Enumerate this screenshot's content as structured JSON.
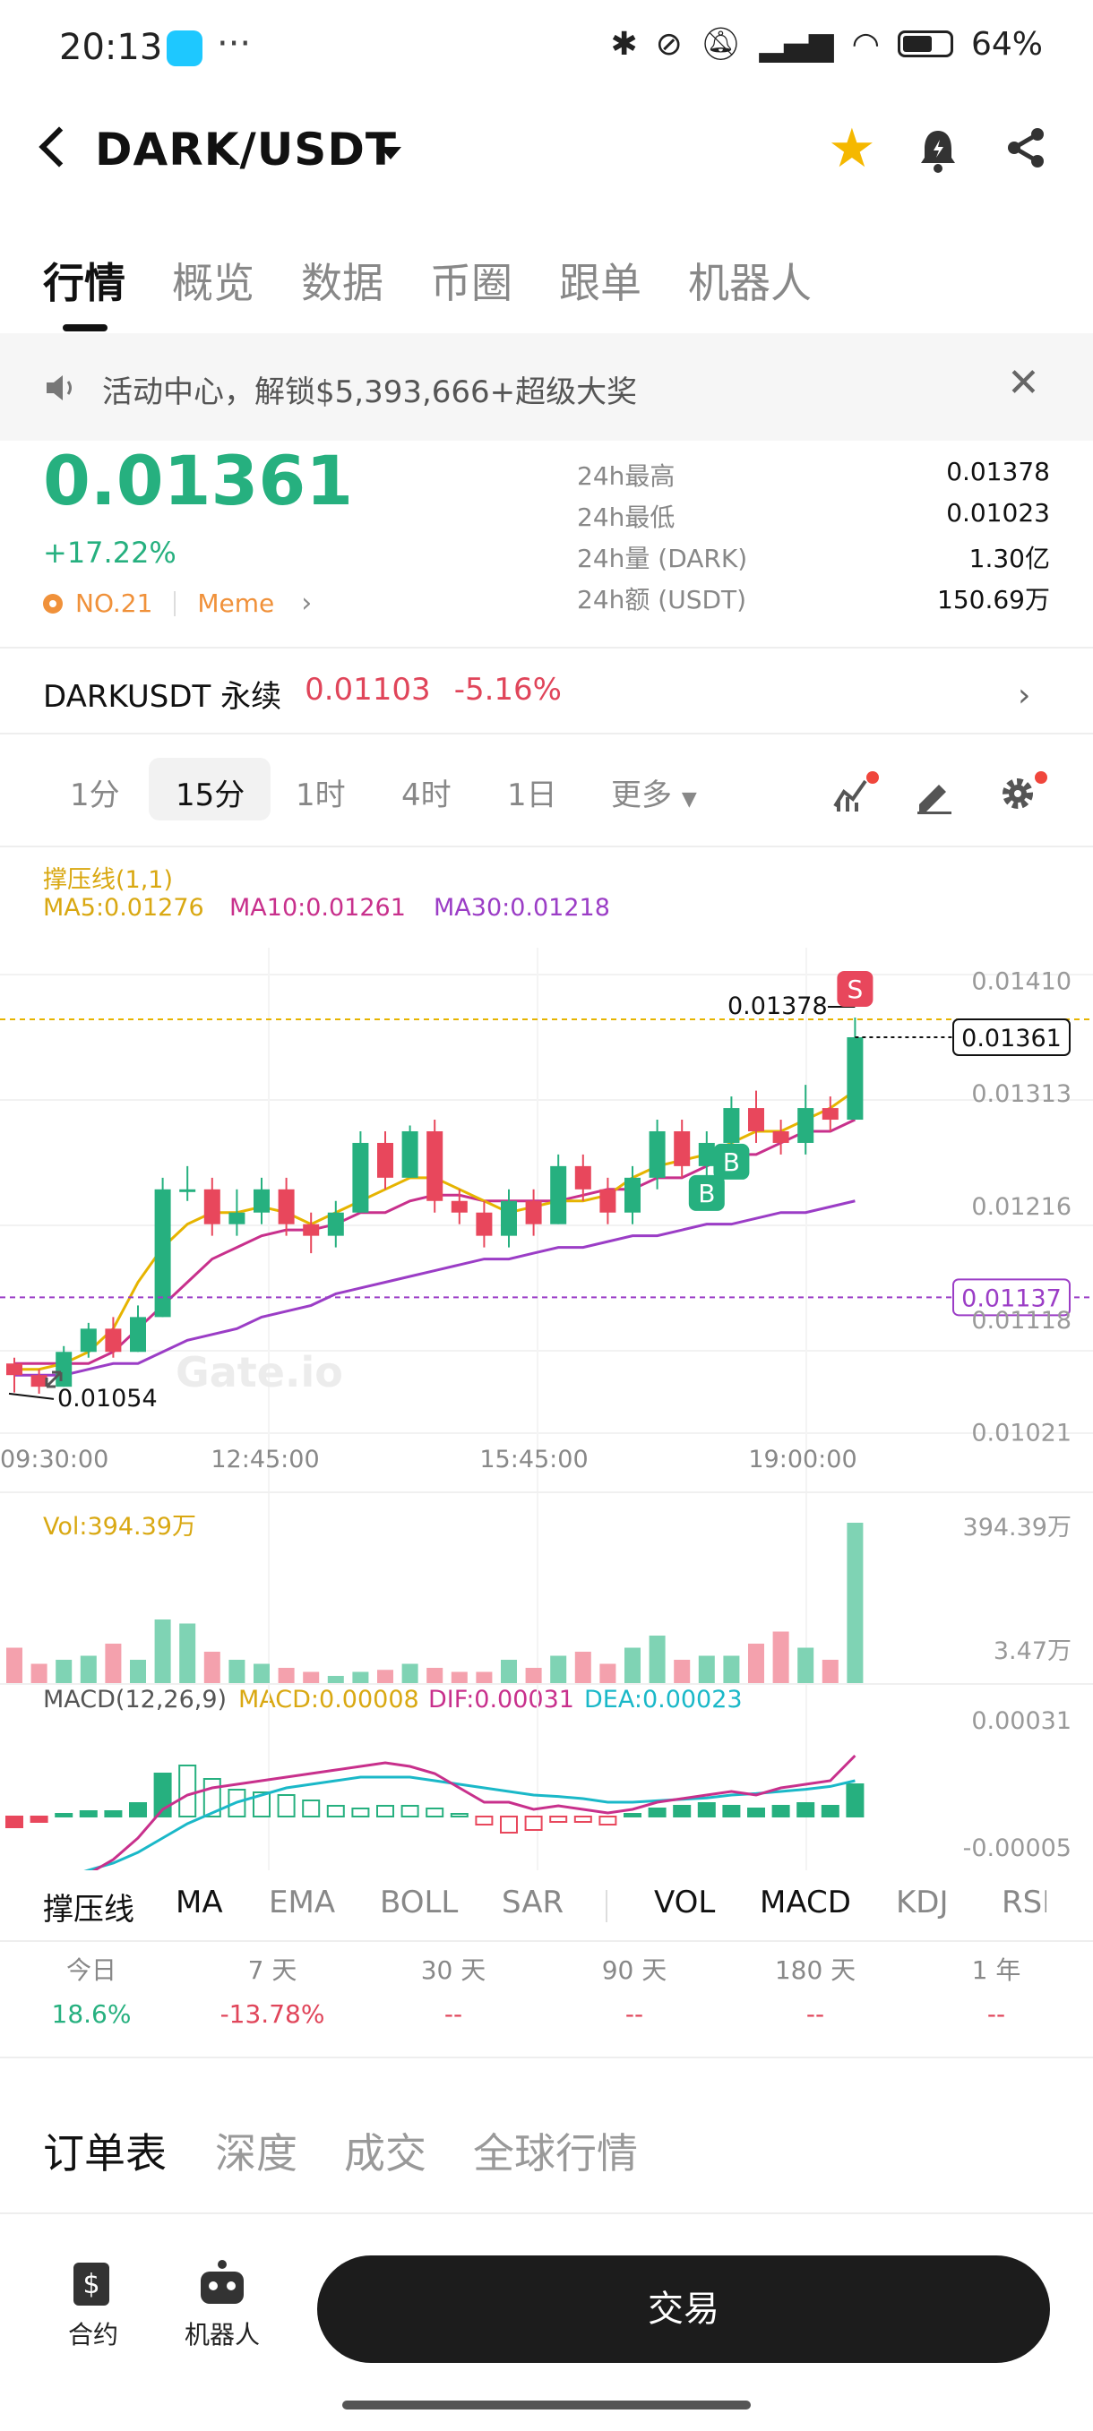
{
  "status": {
    "time": "20:13",
    "battery": "64%",
    "battery_level": 0.64
  },
  "header": {
    "pair": "DARK/USDT"
  },
  "tabs": [
    "行情",
    "概览",
    "数据",
    "币圈",
    "跟单",
    "机器人"
  ],
  "banner": {
    "text": "活动中心，解锁$5,393,666+超级大奖"
  },
  "ticker": {
    "price": "0.01361",
    "change": "+17.22%",
    "rank": "NO.21",
    "tag": "Meme",
    "stats": [
      {
        "label": "24h最高",
        "value": "0.01378"
      },
      {
        "label": "24h最低",
        "value": "0.01023"
      },
      {
        "label": "24h量 (DARK)",
        "value": "1.30亿"
      },
      {
        "label": "24h额 (USDT)",
        "value": "150.69万"
      }
    ]
  },
  "perpetual": {
    "name": "DARKUSDT 永续",
    "price": "0.01103",
    "change": "-5.16%"
  },
  "intervals": [
    "1分",
    "15分",
    "1时",
    "4时",
    "1日",
    "更多"
  ],
  "indicators": {
    "overlay_title": "撑压线(1,1)",
    "ma5": "MA5:0.01276",
    "ma10": "MA10:0.01261",
    "ma30": "MA30:0.01218",
    "vol": "Vol:394.39万",
    "macd_title": "MACD(12,26,9)",
    "macd": "MACD:0.00008",
    "dif": "DIF:0.00031",
    "dea": "DEA:0.00023"
  },
  "indicator_tabs": [
    "撑压线",
    "MA",
    "EMA",
    "BOLL",
    "SAR",
    "VOL",
    "MACD",
    "KDJ",
    "RSI"
  ],
  "performance": [
    {
      "label": "今日",
      "value": "18.6%"
    },
    {
      "label": "7 天",
      "value": "-13.78%"
    },
    {
      "label": "30 天",
      "value": "--"
    },
    {
      "label": "90 天",
      "value": "--"
    },
    {
      "label": "180 天",
      "value": "--"
    },
    {
      "label": "1 年",
      "value": "--"
    }
  ],
  "orderbook_tabs": [
    "订单表",
    "深度",
    "成交",
    "全球行情"
  ],
  "bottom_nav": {
    "contract": "合约",
    "robot": "机器人",
    "trade": "交易"
  },
  "chart_data": {
    "type": "candlestick",
    "price_axis": [
      "0.01410",
      "0.01313",
      "0.01216",
      "0.01118",
      "0.01021"
    ],
    "time_axis": [
      "09:30:00",
      "12:45:00",
      "15:45:00",
      "19:00:00"
    ],
    "high_label": "0.01378",
    "low_label": "0.01054",
    "current_price": "0.01361",
    "support_line": "0.01137",
    "watermark": "Gate.io",
    "markers": [
      "S",
      "B",
      "B"
    ],
    "candles": [
      [
        0.0108,
        0.0107,
        0.01085,
        0.01055
      ],
      [
        0.0107,
        0.0106,
        0.01075,
        0.01054
      ],
      [
        0.0106,
        0.0109,
        0.01095,
        0.0106
      ],
      [
        0.0109,
        0.0111,
        0.01115,
        0.01085
      ],
      [
        0.0111,
        0.0109,
        0.0112,
        0.01085
      ],
      [
        0.0109,
        0.0112,
        0.0113,
        0.0109
      ],
      [
        0.0112,
        0.0123,
        0.0124,
        0.0112
      ],
      [
        0.0123,
        0.0123,
        0.0125,
        0.0122
      ],
      [
        0.0123,
        0.012,
        0.0124,
        0.0119
      ],
      [
        0.012,
        0.0121,
        0.0123,
        0.0119
      ],
      [
        0.0121,
        0.0123,
        0.0124,
        0.012
      ],
      [
        0.0123,
        0.012,
        0.0124,
        0.0119
      ],
      [
        0.012,
        0.0119,
        0.0121,
        0.01175
      ],
      [
        0.0119,
        0.0121,
        0.0122,
        0.0118
      ],
      [
        0.0121,
        0.0127,
        0.0128,
        0.0121
      ],
      [
        0.0127,
        0.0124,
        0.0128,
        0.0123
      ],
      [
        0.0124,
        0.0128,
        0.01285,
        0.0124
      ],
      [
        0.0128,
        0.0122,
        0.0129,
        0.0121
      ],
      [
        0.0122,
        0.0121,
        0.0123,
        0.012
      ],
      [
        0.0121,
        0.0119,
        0.0122,
        0.0118
      ],
      [
        0.0119,
        0.0122,
        0.0123,
        0.0118
      ],
      [
        0.0122,
        0.012,
        0.0123,
        0.0119
      ],
      [
        0.012,
        0.0125,
        0.0126,
        0.012
      ],
      [
        0.0125,
        0.0123,
        0.0126,
        0.0122
      ],
      [
        0.0123,
        0.0121,
        0.0124,
        0.012
      ],
      [
        0.0121,
        0.0124,
        0.0125,
        0.012
      ],
      [
        0.0124,
        0.0128,
        0.0129,
        0.0123
      ],
      [
        0.0128,
        0.0125,
        0.0129,
        0.0124
      ],
      [
        0.0125,
        0.0127,
        0.0128,
        0.0124
      ],
      [
        0.0127,
        0.013,
        0.0131,
        0.0126
      ],
      [
        0.013,
        0.0128,
        0.01315,
        0.0127
      ],
      [
        0.0128,
        0.0127,
        0.0129,
        0.0126
      ],
      [
        0.0127,
        0.013,
        0.0132,
        0.0126
      ],
      [
        0.013,
        0.0129,
        0.0131,
        0.0128
      ],
      [
        0.0129,
        0.01361,
        0.01378,
        0.0129
      ]
    ],
    "volume": [
      0.9,
      0.5,
      0.6,
      0.7,
      1.0,
      0.6,
      1.6,
      1.5,
      0.8,
      0.6,
      0.5,
      0.4,
      0.3,
      0.2,
      0.3,
      0.35,
      0.5,
      0.4,
      0.3,
      0.3,
      0.6,
      0.4,
      0.7,
      0.8,
      0.5,
      0.9,
      1.2,
      0.6,
      0.7,
      0.7,
      1.0,
      1.3,
      0.9,
      0.6,
      4.0
    ],
    "ma5": [
      0.01075,
      0.01075,
      0.0108,
      0.0109,
      0.0111,
      0.0115,
      0.0118,
      0.012,
      0.0121,
      0.0121,
      0.01215,
      0.0121,
      0.012,
      0.0121,
      0.0122,
      0.0123,
      0.0124,
      0.0124,
      0.0123,
      0.0122,
      0.0121,
      0.01215,
      0.0122,
      0.0122,
      0.01225,
      0.0124,
      0.0125,
      0.01255,
      0.0126,
      0.0127,
      0.0128,
      0.0128,
      0.0129,
      0.013,
      0.01315
    ],
    "ma10": [
      0.0108,
      0.0108,
      0.0108,
      0.0108,
      0.0109,
      0.0111,
      0.0113,
      0.0115,
      0.0117,
      0.0118,
      0.0119,
      0.01195,
      0.01195,
      0.012,
      0.0121,
      0.0121,
      0.0122,
      0.01225,
      0.01225,
      0.0122,
      0.0122,
      0.0122,
      0.0122,
      0.01225,
      0.0123,
      0.0123,
      0.0124,
      0.0124,
      0.0125,
      0.0126,
      0.0126,
      0.0127,
      0.0128,
      0.0128,
      0.0129
    ],
    "ma30": [
      0.0107,
      0.0107,
      0.0107,
      0.01075,
      0.0108,
      0.0108,
      0.0109,
      0.011,
      0.01105,
      0.0111,
      0.0112,
      0.01125,
      0.0113,
      0.0114,
      0.01145,
      0.0115,
      0.01155,
      0.0116,
      0.01165,
      0.0117,
      0.0117,
      0.01175,
      0.0118,
      0.0118,
      0.01185,
      0.0119,
      0.0119,
      0.01195,
      0.012,
      0.012,
      0.01205,
      0.0121,
      0.0121,
      0.01215,
      0.0122
    ],
    "macd_hist": [
      -0.2,
      -0.1,
      0.05,
      0.1,
      0.1,
      0.25,
      0.8,
      0.95,
      0.7,
      0.5,
      0.45,
      0.4,
      0.3,
      0.2,
      0.15,
      0.2,
      0.2,
      0.15,
      0.05,
      -0.15,
      -0.3,
      -0.25,
      -0.1,
      -0.1,
      -0.15,
      0.05,
      0.15,
      0.2,
      0.25,
      0.2,
      0.15,
      0.2,
      0.25,
      0.2,
      0.6
    ],
    "dif": [
      -0.6,
      -0.5,
      -0.4,
      -0.3,
      -0.1,
      0.2,
      0.6,
      0.8,
      0.9,
      0.95,
      1.0,
      1.05,
      1.1,
      1.15,
      1.2,
      1.25,
      1.2,
      1.1,
      0.9,
      0.7,
      0.7,
      0.6,
      0.65,
      0.6,
      0.55,
      0.6,
      0.7,
      0.75,
      0.8,
      0.85,
      0.8,
      0.9,
      0.95,
      1.0,
      1.35
    ],
    "dea": [
      -0.5,
      -0.4,
      -0.35,
      -0.25,
      -0.15,
      0.0,
      0.2,
      0.4,
      0.55,
      0.7,
      0.8,
      0.9,
      0.95,
      1.0,
      1.05,
      1.05,
      1.05,
      1.0,
      0.95,
      0.9,
      0.85,
      0.8,
      0.78,
      0.75,
      0.7,
      0.7,
      0.72,
      0.74,
      0.76,
      0.8,
      0.82,
      0.85,
      0.88,
      0.92,
      1.0
    ],
    "vol_axis": [
      "394.39万",
      "3.47万"
    ],
    "macd_axis": [
      "0.00031",
      "-0.00005"
    ]
  }
}
